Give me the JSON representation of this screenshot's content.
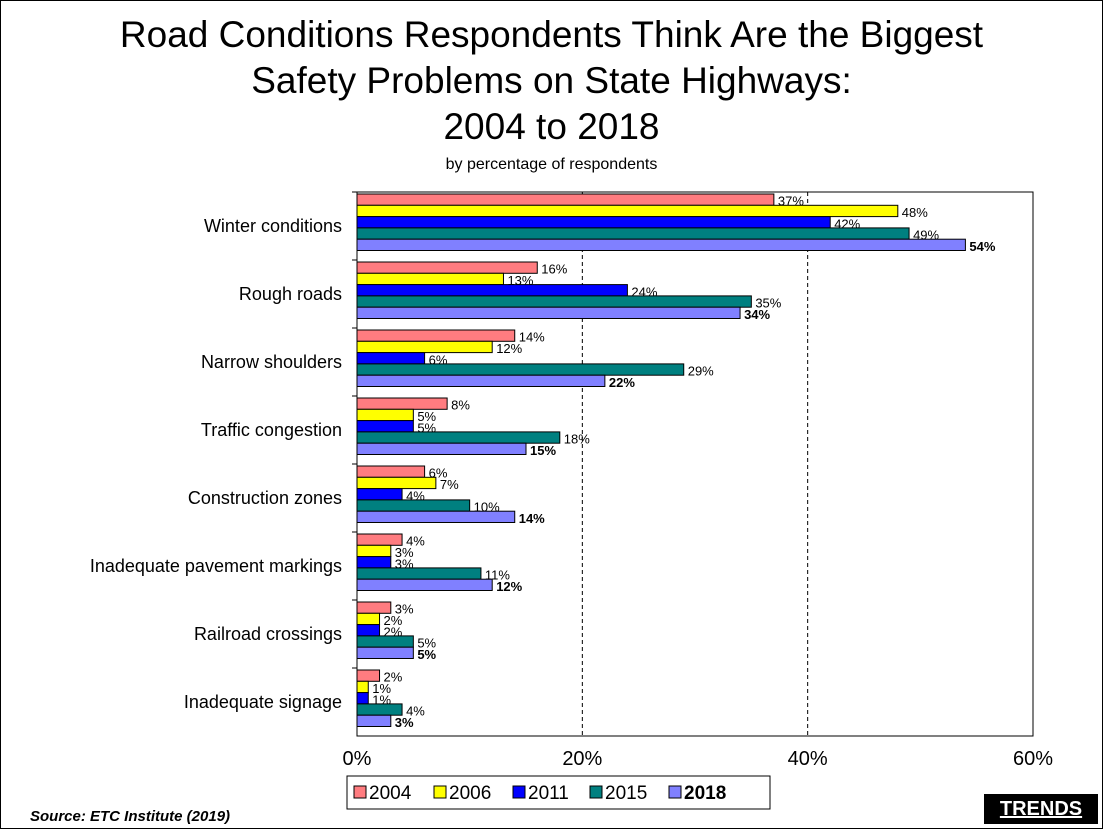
{
  "title_lines": [
    "Road Conditions Respondents Think Are the Biggest",
    "Safety Problems on State Highways:",
    "2004 to 2018"
  ],
  "subtitle": "by percentage of respondents",
  "source": "Source:  ETC Institute (2019)",
  "brand": "TRENDS",
  "chart_data": {
    "type": "bar",
    "orientation": "horizontal",
    "categories": [
      "Winter conditions",
      "Rough roads",
      "Narrow shoulders",
      "Traffic congestion",
      "Construction zones",
      "Inadequate pavement markings",
      "Railroad crossings",
      "Inadequate signage"
    ],
    "series": [
      {
        "name": "2004",
        "color": "#ff7c80",
        "values": [
          37,
          16,
          14,
          8,
          6,
          4,
          3,
          2
        ]
      },
      {
        "name": "2006",
        "color": "#ffff00",
        "values": [
          48,
          13,
          12,
          5,
          7,
          3,
          2,
          1
        ]
      },
      {
        "name": "2011",
        "color": "#0000ff",
        "values": [
          42,
          24,
          6,
          5,
          4,
          3,
          2,
          1
        ]
      },
      {
        "name": "2015",
        "color": "#008080",
        "values": [
          49,
          35,
          29,
          18,
          10,
          11,
          5,
          4
        ]
      },
      {
        "name": "2018",
        "color": "#8080ff",
        "values": [
          54,
          34,
          22,
          15,
          14,
          12,
          5,
          3
        ],
        "bold": true
      }
    ],
    "xlim": [
      0,
      60
    ],
    "xticks": [
      "0%",
      "20%",
      "40%",
      "60%"
    ],
    "xtick_values": [
      0,
      20,
      40,
      60
    ],
    "value_suffix": "%",
    "grid": "dashed vertical at 20% and 40%",
    "legend_position": "bottom"
  }
}
